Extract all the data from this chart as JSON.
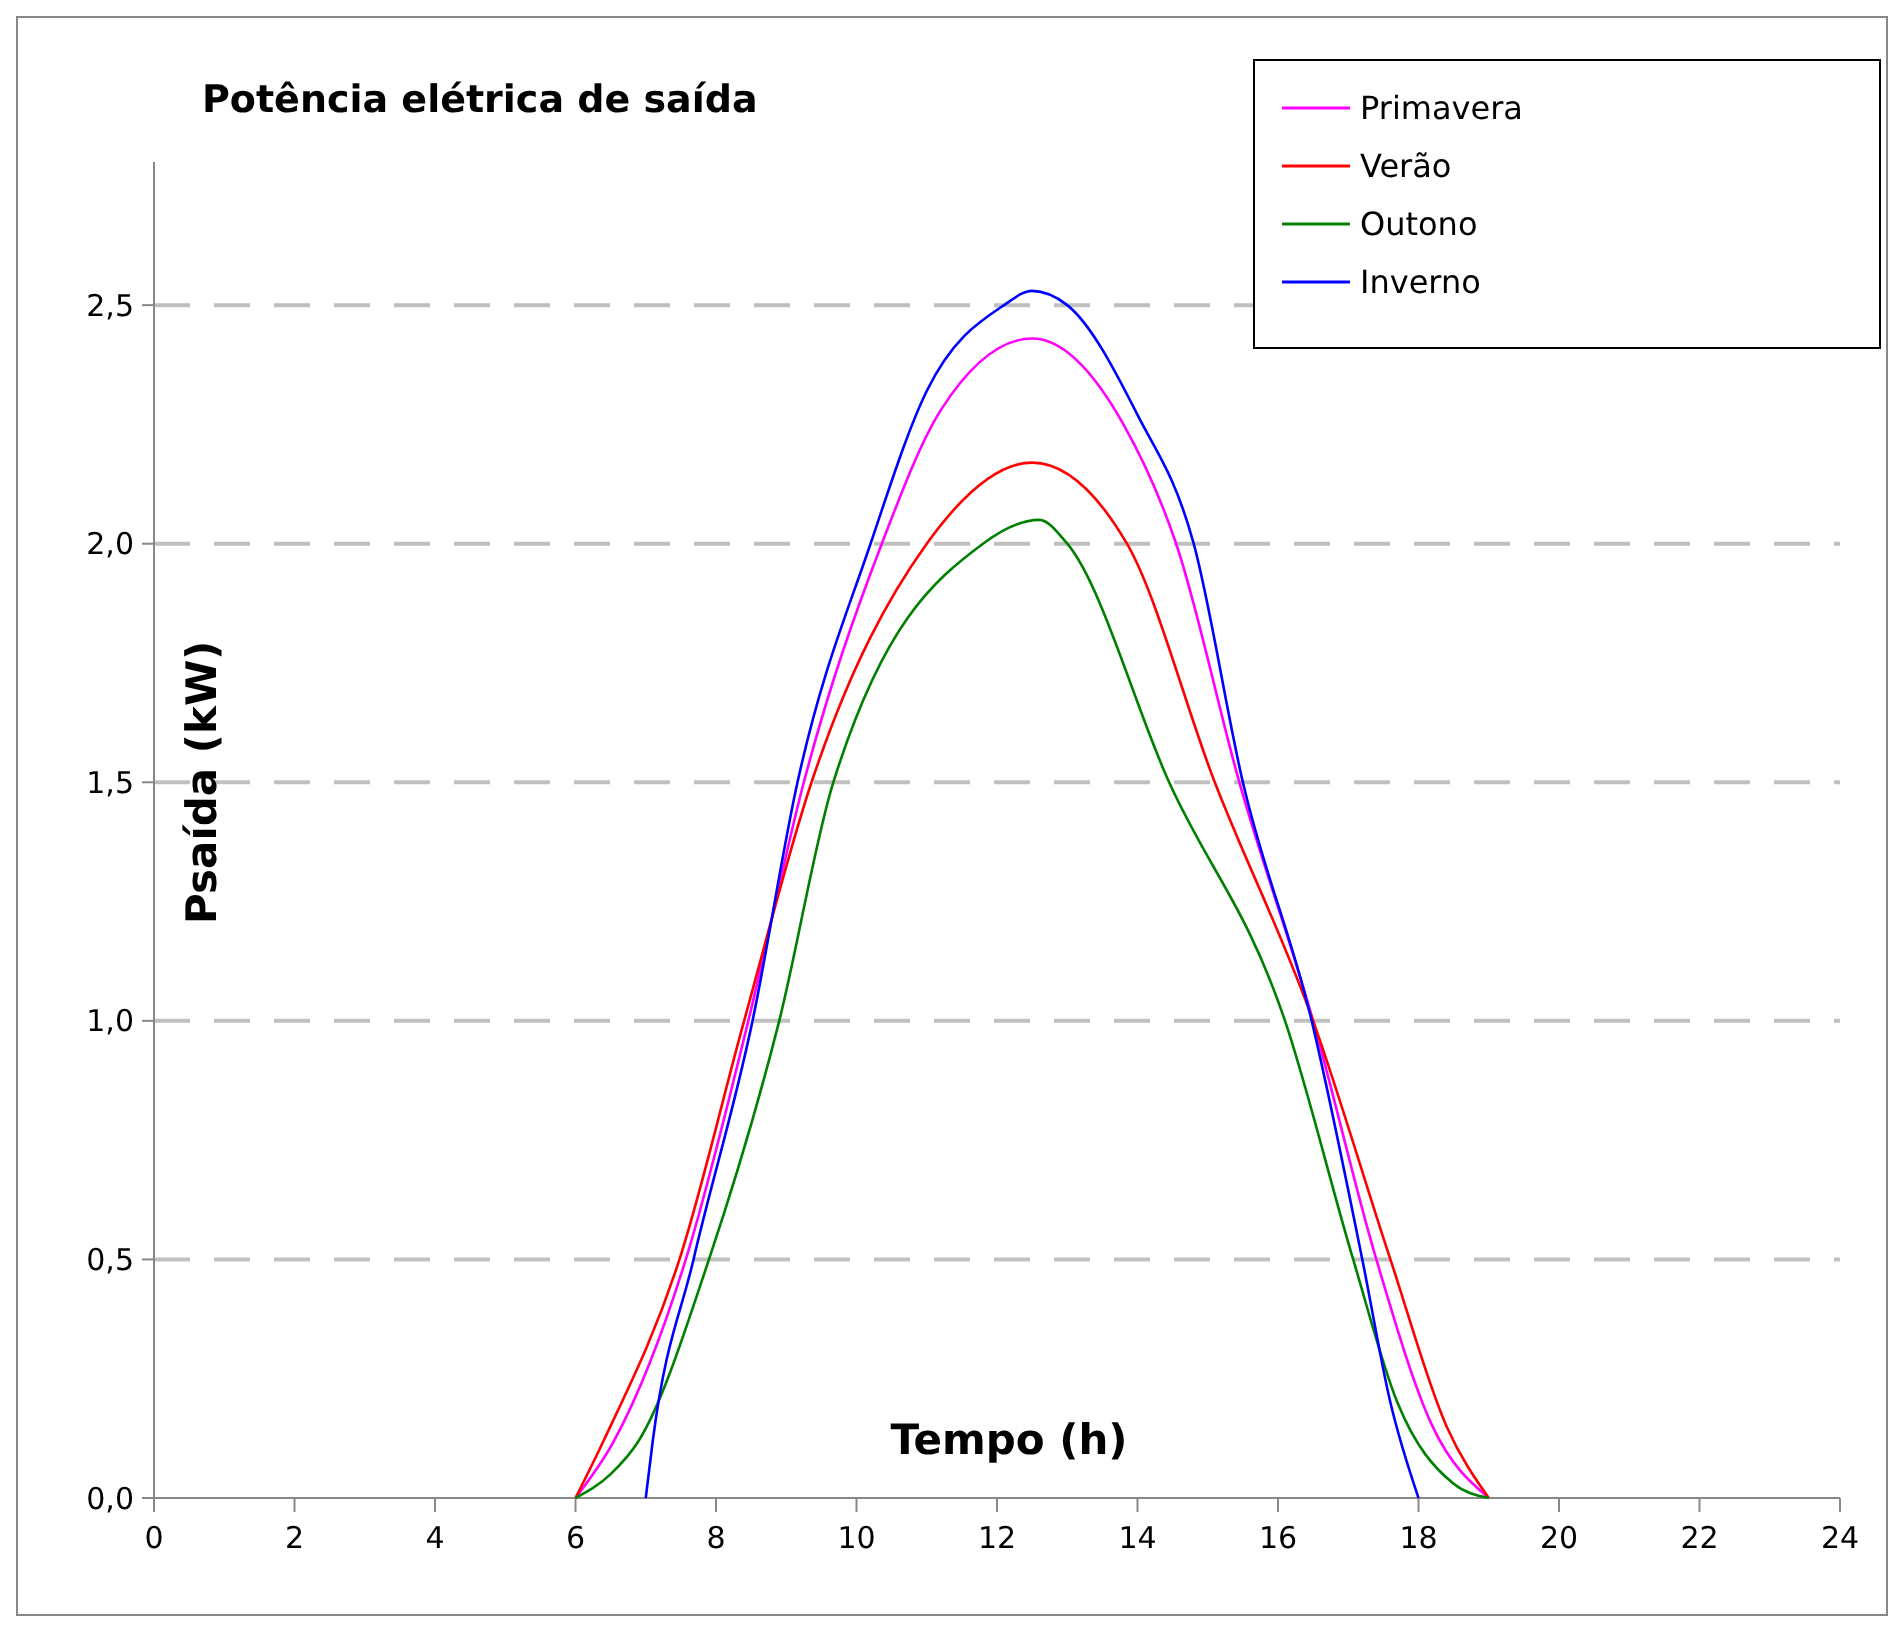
{
  "chart_data": {
    "type": "line",
    "title": "Potência elétrica de saída",
    "xlabel": "Tempo (h)",
    "ylabel": "Psaída (kW)",
    "xlim": [
      0,
      24
    ],
    "xticks": [
      0,
      2,
      4,
      6,
      8,
      10,
      12,
      14,
      16,
      18,
      20,
      22,
      24
    ],
    "ylim": [
      0,
      2.8
    ],
    "yticks": [
      {
        "value": 0,
        "label": "0,0"
      },
      {
        "value": 0.5,
        "label": "0,5"
      },
      {
        "value": 1,
        "label": "1,0"
      },
      {
        "value": 1.5,
        "label": "1,5"
      },
      {
        "value": 2,
        "label": "2,0"
      },
      {
        "value": 2.5,
        "label": "2,5"
      }
    ],
    "grid": "y",
    "legend": "top right",
    "marker": "none",
    "line_style": "solid",
    "series": [
      {
        "name": "Primavera",
        "color": "#ff00ff",
        "x": [
          6.0,
          6.55,
          7.57,
          8.46,
          9.25,
          10.36,
          11.2,
          12.5,
          13.8,
          14.55,
          15.45,
          16.5,
          17.4,
          18.2,
          19.0
        ],
        "values": [
          0,
          0.12,
          0.5,
          1.0,
          1.5,
          2.0,
          2.28,
          2.43,
          2.25,
          2.0,
          1.5,
          1.0,
          0.5,
          0.15,
          0
        ]
      },
      {
        "name": "Verão",
        "color": "#ff0000",
        "x": [
          6.0,
          6.4,
          7.48,
          8.4,
          9.36,
          11.0,
          12.5,
          13.85,
          15.1,
          16.5,
          17.6,
          18.4,
          19.0
        ],
        "values": [
          0,
          0.12,
          0.5,
          1.0,
          1.5,
          2.0,
          2.17,
          2.0,
          1.5,
          1.0,
          0.5,
          0.15,
          0
        ]
      },
      {
        "name": "Outono",
        "color": "#008000",
        "x": [
          6.0,
          6.5,
          6.9,
          7.9,
          8.9,
          9.67,
          11.8,
          12.6,
          13.0,
          14.45,
          16.1,
          17.07,
          17.7,
          18.5,
          19.0
        ],
        "values": [
          0,
          0.05,
          0.12,
          0.5,
          1.0,
          1.5,
          2.0,
          2.05,
          2.0,
          1.5,
          1.0,
          0.5,
          0.2,
          0.03,
          0
        ]
      },
      {
        "name": "Inverno",
        "color": "#0000ff",
        "x": [
          7.0,
          7.1,
          7.68,
          8.52,
          9.16,
          10.2,
          11.0,
          12.1,
          12.5,
          13.0,
          14.0,
          14.8,
          15.5,
          16.48,
          17.2,
          17.6,
          18.0
        ],
        "values": [
          0,
          0.12,
          0.5,
          1.0,
          1.5,
          2.0,
          2.32,
          2.5,
          2.53,
          2.5,
          2.27,
          2.0,
          1.5,
          1.0,
          0.5,
          0.2,
          0
        ]
      }
    ]
  }
}
